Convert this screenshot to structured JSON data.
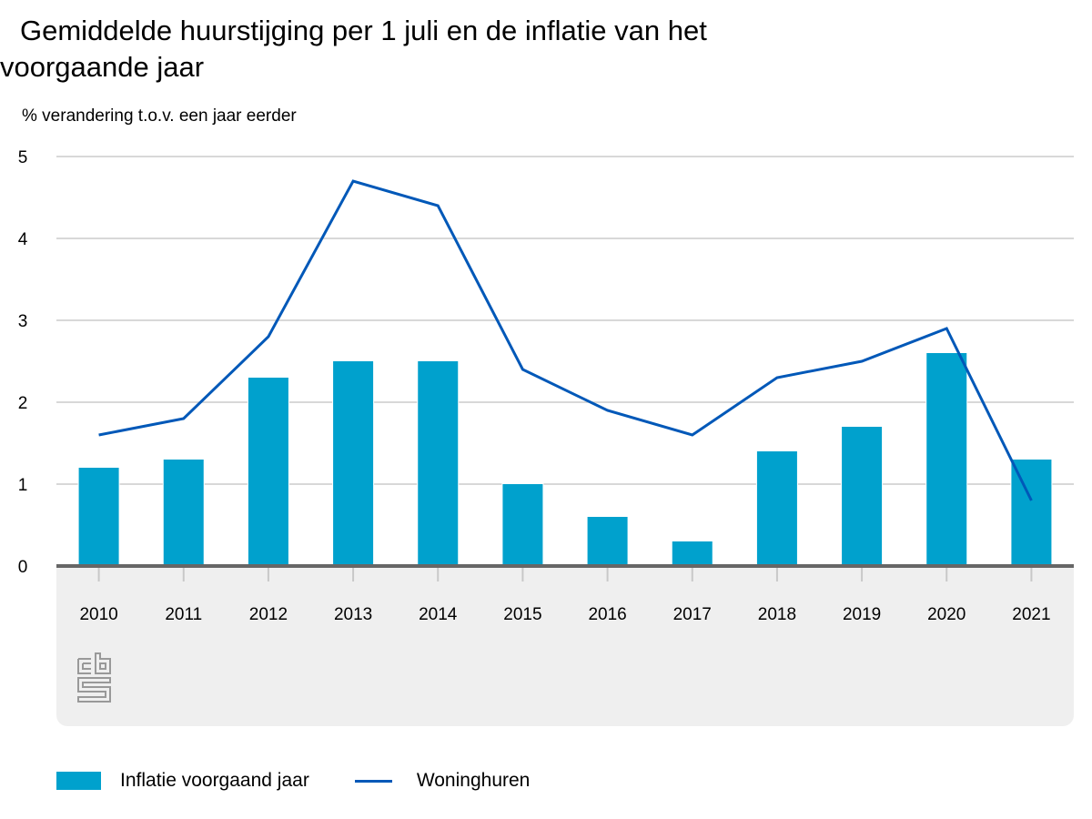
{
  "colors": {
    "bar": "#00a1cd",
    "line": "#0058b8",
    "grid": "#cccccc",
    "axis": "#666666",
    "panel": "#efefef"
  },
  "logo": "cbs-logo",
  "chart_data": {
    "type": "bar",
    "title_line1": "Gemiddelde huurstijging per 1 juli en de inflatie van het",
    "title_line2": "voorgaande jaar",
    "ylabel": "% verandering t.o.v. een jaar eerder",
    "xlabel": "",
    "ylim": [
      0,
      5
    ],
    "yticks": [
      0,
      1,
      2,
      3,
      4,
      5
    ],
    "grid": true,
    "legend_position": "bottom-left",
    "categories": [
      "2010",
      "2011",
      "2012",
      "2013",
      "2014",
      "2015",
      "2016",
      "2017",
      "2018",
      "2019",
      "2020",
      "2021"
    ],
    "series": [
      {
        "name": "Inflatie voorgaand jaar",
        "type": "bar",
        "values": [
          1.2,
          1.3,
          2.3,
          2.5,
          2.5,
          1.0,
          0.6,
          0.3,
          1.4,
          1.7,
          2.6,
          1.3
        ]
      },
      {
        "name": "Woninghuren",
        "type": "line",
        "values": [
          1.6,
          1.8,
          2.8,
          4.7,
          4.4,
          2.4,
          1.9,
          1.6,
          2.3,
          2.5,
          2.9,
          0.8
        ]
      }
    ]
  }
}
